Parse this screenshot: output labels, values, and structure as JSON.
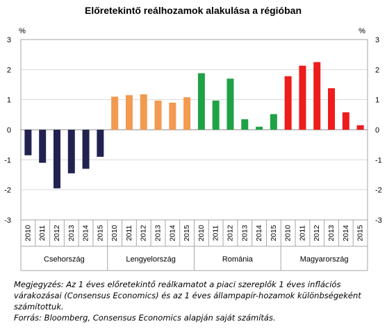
{
  "chart_data": {
    "type": "bar",
    "title": "Előretekintő reálhozamok alakulása a régióban",
    "unit_left": "%",
    "unit_right": "%",
    "ylim": [
      -3,
      3
    ],
    "yticks": [
      3,
      2,
      1,
      0,
      -1,
      -2,
      -3
    ],
    "grid": true,
    "legend": "none",
    "years": [
      "2010",
      "2011",
      "2012",
      "2013",
      "2014",
      "2015"
    ],
    "groups": [
      {
        "name": "Csehország",
        "color": "#222250",
        "values": [
          -0.85,
          -1.1,
          -1.95,
          -1.45,
          -1.3,
          -0.9
        ]
      },
      {
        "name": "Lengyelország",
        "color": "#f29a50",
        "values": [
          1.1,
          1.15,
          1.18,
          0.97,
          0.9,
          1.08
        ]
      },
      {
        "name": "Románia",
        "color": "#1fa246",
        "values": [
          1.88,
          0.97,
          1.7,
          0.35,
          0.1,
          0.52
        ]
      },
      {
        "name": "Magyarország",
        "color": "#ee1c1c",
        "values": [
          1.78,
          2.13,
          2.25,
          1.38,
          0.58,
          0.15
        ]
      }
    ]
  },
  "notes": {
    "line1": "Megjegyzés: Az 1 éves előretekintő reálkamatot a piaci szereplők 1 éves inflációs",
    "line2": "várakozásai (Consensus Economics) és az 1 éves állampapír-hozamok különbségeként",
    "line3": "számítottuk.",
    "line4": "Forrás: Bloomberg, Consensus Economics alapján saját számítás."
  }
}
